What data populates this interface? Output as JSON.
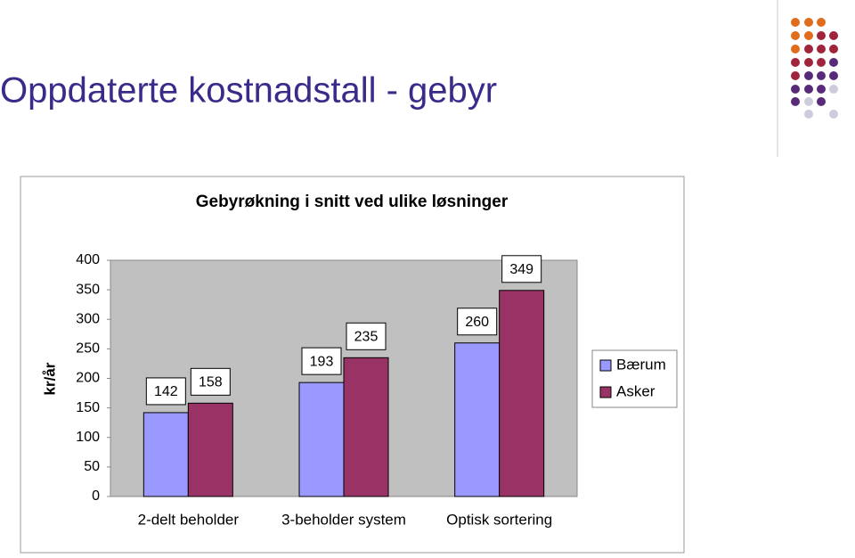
{
  "title": "Oppdaterte kostnadstall - gebyr",
  "chart_data": {
    "type": "bar",
    "title": "Gebyrøkning i snitt ved ulike løsninger",
    "y_label": "kr/år",
    "categories": [
      "2-delt beholder",
      "3-beholder system",
      "Optisk sortering"
    ],
    "series": [
      {
        "name": "Bærum",
        "color": "#9999ff",
        "values": [
          142,
          193,
          260
        ]
      },
      {
        "name": "Asker",
        "color": "#993366",
        "values": [
          158,
          235,
          349
        ]
      }
    ],
    "ylim": [
      0,
      400
    ],
    "yticks": [
      0,
      50,
      100,
      150,
      200,
      250,
      300,
      350,
      400
    ],
    "grid": false,
    "legend": "right",
    "plot_background": "#c0c0c0"
  }
}
